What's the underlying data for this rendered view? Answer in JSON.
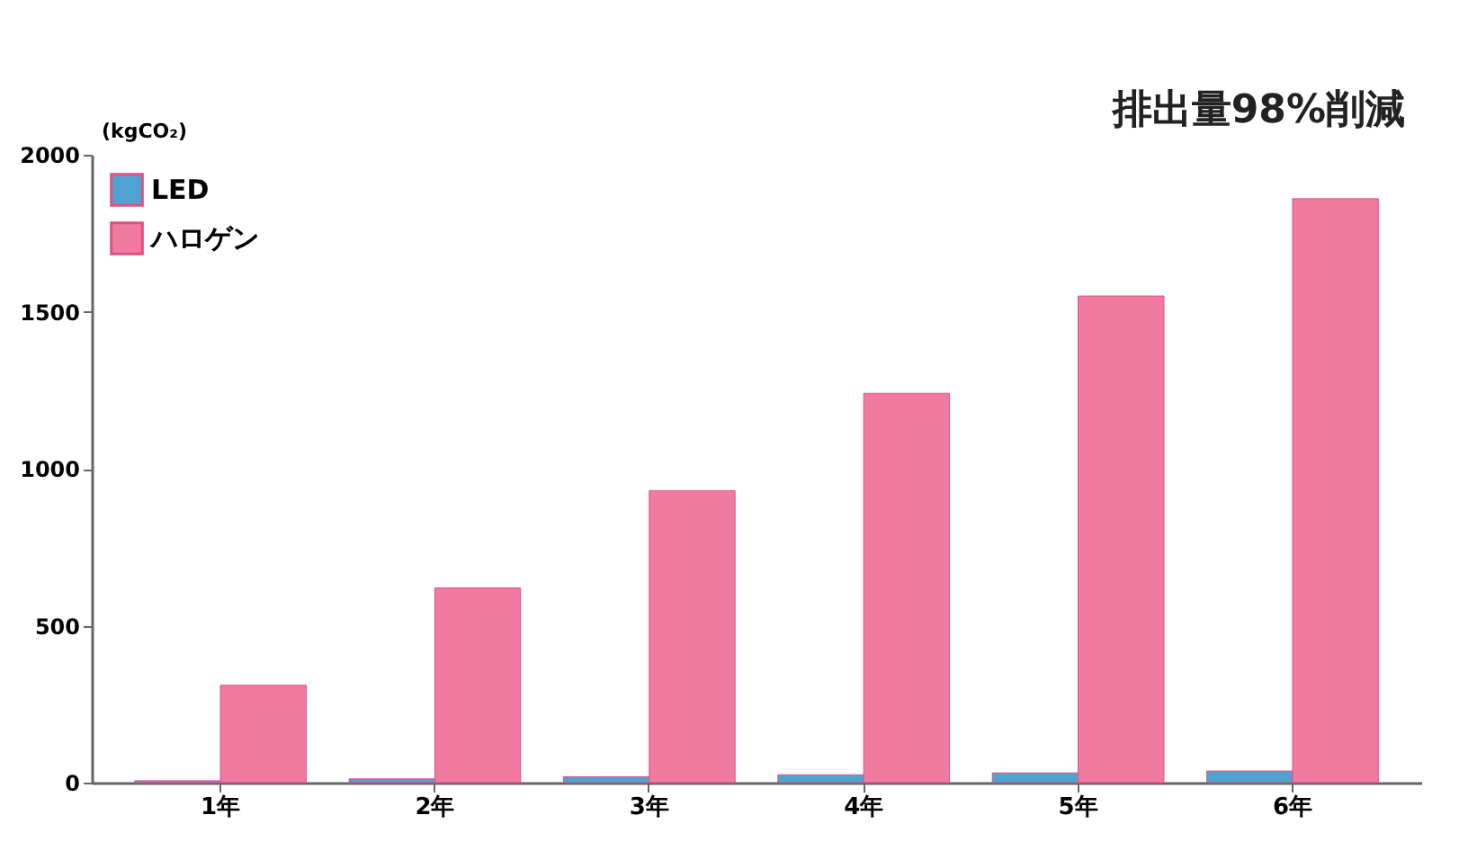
{
  "chart_data": {
    "type": "bar",
    "categories": [
      "1年",
      "2年",
      "3年",
      "4年",
      "5年",
      "6年"
    ],
    "ylabel": "(kgCO₂)",
    "ylim": [
      0,
      2000
    ],
    "yticks": [
      0,
      500,
      1000,
      1500,
      2000
    ],
    "grid": false,
    "legend": "top left",
    "series": [
      {
        "name": "LED",
        "color": "#4fa3d1",
        "values": [
          6,
          12,
          19,
          25,
          31,
          37
        ]
      },
      {
        "name": "ハロゲン",
        "color": "#f07aa0",
        "values": [
          310,
          620,
          930,
          1240,
          1550,
          1860
        ]
      }
    ],
    "annotations": [
      "排出量98%削減"
    ]
  }
}
